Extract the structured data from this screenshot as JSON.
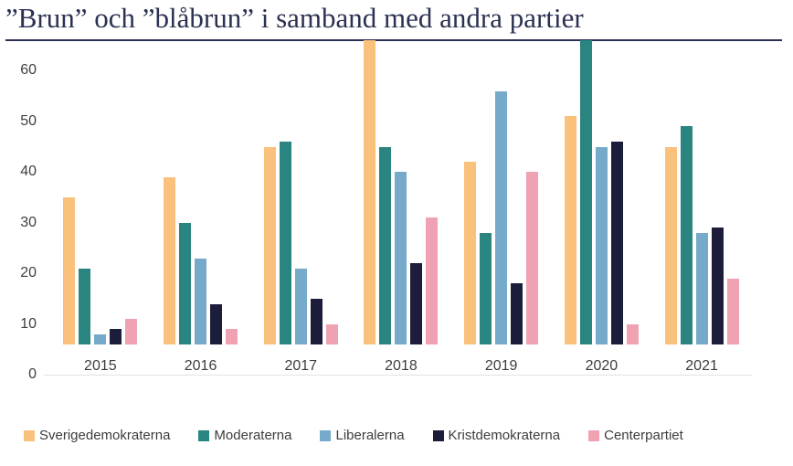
{
  "title": "”Brun” och ”blåbrun” i samband med andra partier",
  "colors": {
    "title_text": "#2b3152",
    "axis_text": "#3f3f3f",
    "axis_line": "#e2e2e2",
    "background": "#ffffff"
  },
  "chart_data": {
    "type": "bar",
    "title": "”Brun” och ”blåbrun” i samband med andra partier",
    "categories": [
      "2015",
      "2016",
      "2017",
      "2018",
      "2019",
      "2020",
      "2021"
    ],
    "series": [
      {
        "name": "Sverigedemokraterna",
        "color": "#F9C17C",
        "values": [
          29,
          33,
          39,
          60,
          36,
          45,
          39
        ]
      },
      {
        "name": "Moderaterna",
        "color": "#2A8480",
        "values": [
          15,
          24,
          40,
          39,
          22,
          60,
          43
        ]
      },
      {
        "name": "Liberalerna",
        "color": "#76AACB",
        "values": [
          2,
          17,
          15,
          34,
          50,
          39,
          22
        ]
      },
      {
        "name": "Kristdemokraterna",
        "color": "#1C1C3B",
        "values": [
          3,
          8,
          9,
          16,
          12,
          40,
          23
        ]
      },
      {
        "name": "Centerpartiet",
        "color": "#F0A2B2",
        "values": [
          5,
          3,
          4,
          25,
          34,
          4,
          13
        ]
      }
    ],
    "xlabel": "",
    "ylabel": "",
    "ylim": [
      0,
      60
    ],
    "yticks": [
      0,
      10,
      20,
      30,
      40,
      50,
      60
    ],
    "grid": false,
    "legend_position": "bottom"
  }
}
